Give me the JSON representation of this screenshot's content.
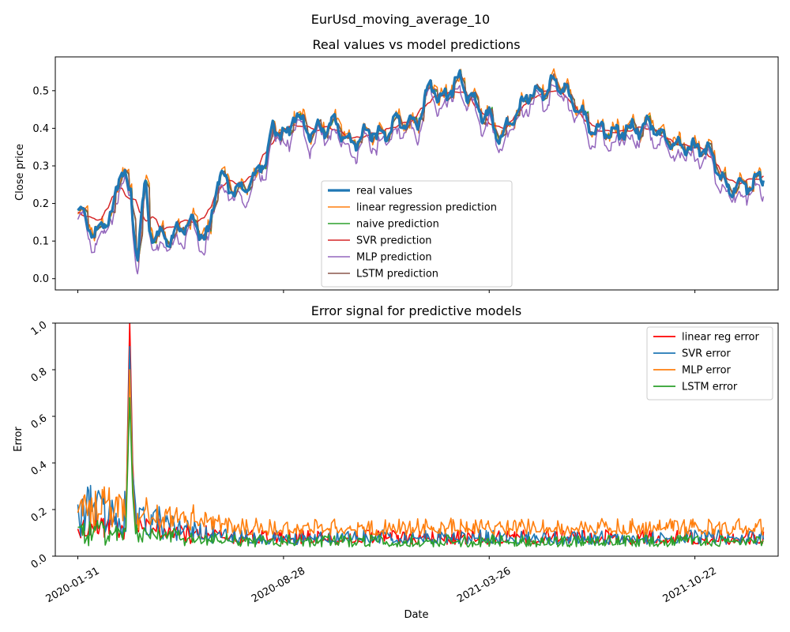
{
  "figure": {
    "suptitle": "EurUsd_moving_average_10"
  },
  "chart_data": [
    {
      "type": "line",
      "title": "Real values vs model predictions",
      "xlabel": "",
      "ylabel": "Close price",
      "ylim": [
        -0.03,
        0.59
      ],
      "yticks": [
        0.0,
        0.1,
        0.2,
        0.3,
        0.4,
        0.5
      ],
      "ytick_labels": [
        "0.0",
        "0.1",
        "0.2",
        "0.3",
        "0.4",
        "0.5"
      ],
      "xlim": [
        "2020-01-08",
        "2022-01-15"
      ],
      "xticks": [
        "2020-01-31",
        "2020-08-28",
        "2021-03-26",
        "2021-10-22"
      ],
      "legend_position": "lower-center",
      "x_range": [
        "2020-01-31",
        "2021-12-31"
      ],
      "anchors": [
        [
          "2020-01-31",
          0.18
        ],
        [
          "2020-02-18",
          0.12
        ],
        [
          "2020-03-05",
          0.17
        ],
        [
          "2020-03-17",
          0.3
        ],
        [
          "2020-03-24",
          0.22
        ],
        [
          "2020-03-31",
          0.07
        ],
        [
          "2020-04-09",
          0.24
        ],
        [
          "2020-04-14",
          0.12
        ],
        [
          "2020-05-04",
          0.11
        ],
        [
          "2020-05-25",
          0.15
        ],
        [
          "2020-06-10",
          0.11
        ],
        [
          "2020-06-24",
          0.27
        ],
        [
          "2020-07-13",
          0.23
        ],
        [
          "2020-07-27",
          0.26
        ],
        [
          "2020-08-10",
          0.32
        ],
        [
          "2020-08-17",
          0.4
        ],
        [
          "2020-09-01",
          0.38
        ],
        [
          "2020-09-08",
          0.44
        ],
        [
          "2020-09-24",
          0.39
        ],
        [
          "2020-10-20",
          0.41
        ],
        [
          "2020-11-05",
          0.36
        ],
        [
          "2020-11-24",
          0.39
        ],
        [
          "2020-12-09",
          0.38
        ],
        [
          "2020-12-22",
          0.42
        ],
        [
          "2021-01-08",
          0.41
        ],
        [
          "2021-01-27",
          0.51
        ],
        [
          "2021-02-05",
          0.48
        ],
        [
          "2021-02-25",
          0.53
        ],
        [
          "2021-03-04",
          0.49
        ],
        [
          "2021-03-20",
          0.44
        ],
        [
          "2021-04-07",
          0.38
        ],
        [
          "2021-04-20",
          0.43
        ],
        [
          "2021-05-07",
          0.49
        ],
        [
          "2021-05-20",
          0.5
        ],
        [
          "2021-06-04",
          0.52
        ],
        [
          "2021-06-24",
          0.46
        ],
        [
          "2021-07-08",
          0.4
        ],
        [
          "2021-08-03",
          0.39
        ],
        [
          "2021-08-25",
          0.4
        ],
        [
          "2021-09-07",
          0.41
        ],
        [
          "2021-09-22",
          0.37
        ],
        [
          "2021-10-06",
          0.35
        ],
        [
          "2021-10-26",
          0.35
        ],
        [
          "2021-11-04",
          0.34
        ],
        [
          "2021-11-25",
          0.24
        ],
        [
          "2021-12-15",
          0.25
        ],
        [
          "2021-12-31",
          0.27
        ]
      ],
      "series": [
        {
          "name": "real values",
          "color": "#1f77b4",
          "model": "real",
          "width": 3.2
        },
        {
          "name": "linear regression prediction",
          "color": "#ff7f0e",
          "model": "linreg",
          "width": 1.5
        },
        {
          "name": "naive prediction",
          "color": "#2ca02c",
          "model": "naive",
          "width": 1.5
        },
        {
          "name": "SVR prediction",
          "color": "#d62728",
          "model": "svr",
          "width": 1.5
        },
        {
          "name": "MLP prediction",
          "color": "#9467bd",
          "model": "mlp",
          "width": 1.5
        },
        {
          "name": "LSTM prediction",
          "color": "#8c564b",
          "model": "lstm",
          "width": 1.5
        }
      ]
    },
    {
      "type": "line",
      "title": "Error signal for predictive models",
      "xlabel": "Date",
      "ylabel": "Error",
      "ylim": [
        0.0,
        1.0
      ],
      "yticks": [
        0.0,
        0.2,
        0.4,
        0.6,
        0.8,
        1.0
      ],
      "ytick_labels": [
        "0.0",
        "0.2",
        "0.4",
        "0.6",
        "0.8",
        "1.0"
      ],
      "xlim": [
        "2020-01-08",
        "2022-01-15"
      ],
      "xticks": [
        "2020-01-31",
        "2020-08-28",
        "2021-03-26",
        "2021-10-22"
      ],
      "xtick_labels": [
        "2020-01-31",
        "2020-08-28",
        "2021-03-26",
        "2021-10-22"
      ],
      "legend_position": "top-right",
      "x_range": [
        "2020-01-31",
        "2021-12-31"
      ],
      "series": [
        {
          "name": "linear reg error",
          "color": "#ff0000",
          "base": 0.05,
          "amp": 0.06,
          "early": 0.12,
          "spike": 1.0
        },
        {
          "name": "SVR error",
          "color": "#1f77b4",
          "base": 0.05,
          "amp": 0.06,
          "early": 0.25,
          "spike": 0.9
        },
        {
          "name": "MLP error",
          "color": "#ff7f0e",
          "base": 0.09,
          "amp": 0.07,
          "early": 0.2,
          "spike": 0.8
        },
        {
          "name": "LSTM error",
          "color": "#2ca02c",
          "base": 0.04,
          "amp": 0.05,
          "early": 0.1,
          "spike": 0.68
        }
      ]
    }
  ]
}
